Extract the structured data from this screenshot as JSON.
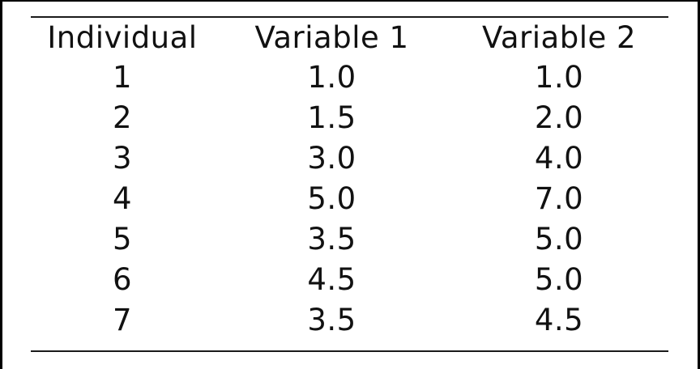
{
  "table": {
    "columns": [
      "Individual",
      "Variable 1",
      "Variable 2"
    ],
    "rows": [
      [
        "1",
        "1.0",
        "1.0"
      ],
      [
        "2",
        "1.5",
        "2.0"
      ],
      [
        "3",
        "3.0",
        "4.0"
      ],
      [
        "4",
        "5.0",
        "7.0"
      ],
      [
        "5",
        "3.5",
        "5.0"
      ],
      [
        "6",
        "4.5",
        "5.0"
      ],
      [
        "7",
        "3.5",
        "4.5"
      ]
    ]
  }
}
